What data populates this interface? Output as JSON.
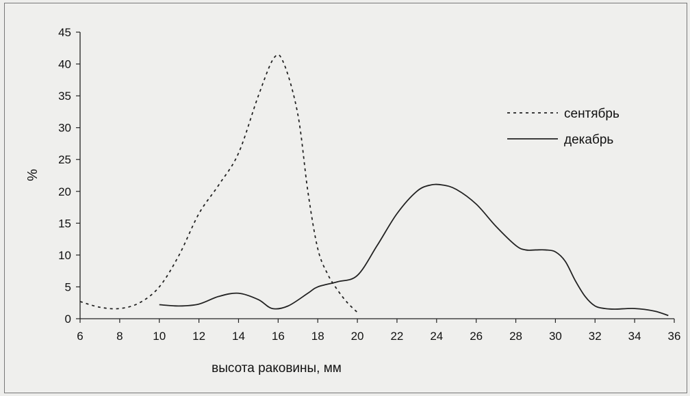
{
  "chart_data": {
    "type": "line",
    "xlabel": "высота раковины, мм",
    "ylabel": "%",
    "xlim": [
      6,
      36
    ],
    "ylim": [
      0,
      45
    ],
    "x_ticks": [
      6,
      8,
      10,
      12,
      14,
      16,
      18,
      20,
      22,
      24,
      26,
      28,
      30,
      32,
      34,
      36
    ],
    "y_ticks": [
      0,
      5,
      10,
      15,
      20,
      25,
      30,
      35,
      40,
      45
    ],
    "grid": false,
    "legend": "top-right",
    "series": [
      {
        "name": "сентябрь",
        "style": "dotted",
        "color": "#222222",
        "x": [
          6,
          7,
          8,
          9,
          10,
          11,
          12,
          13,
          14,
          15,
          15.8,
          16.3,
          17,
          17.5,
          18,
          18.5,
          19,
          19.5,
          20
        ],
        "y": [
          2.7,
          1.8,
          1.6,
          2.5,
          5,
          10,
          16.5,
          21,
          26,
          35,
          41,
          40,
          32,
          20,
          11,
          7,
          4.5,
          2.5,
          1
        ]
      },
      {
        "name": "декабрь",
        "style": "solid",
        "color": "#222222",
        "x": [
          10,
          11,
          12,
          13,
          14,
          15,
          15.7,
          16.5,
          17.5,
          18,
          19,
          20,
          21,
          22,
          23,
          23.7,
          24.3,
          25,
          26,
          27,
          28,
          28.5,
          29,
          29.5,
          30,
          30.5,
          31,
          31.5,
          32,
          32.5,
          33,
          34,
          35,
          35.7
        ],
        "y": [
          2.2,
          2,
          2.3,
          3.5,
          4,
          3,
          1.6,
          2,
          4,
          5,
          5.8,
          6.8,
          11.5,
          16.5,
          20,
          21,
          21,
          20.3,
          18,
          14.5,
          11.5,
          10.8,
          10.8,
          10.8,
          10.5,
          9,
          6,
          3.5,
          2,
          1.6,
          1.5,
          1.6,
          1.2,
          0.5
        ]
      }
    ]
  }
}
